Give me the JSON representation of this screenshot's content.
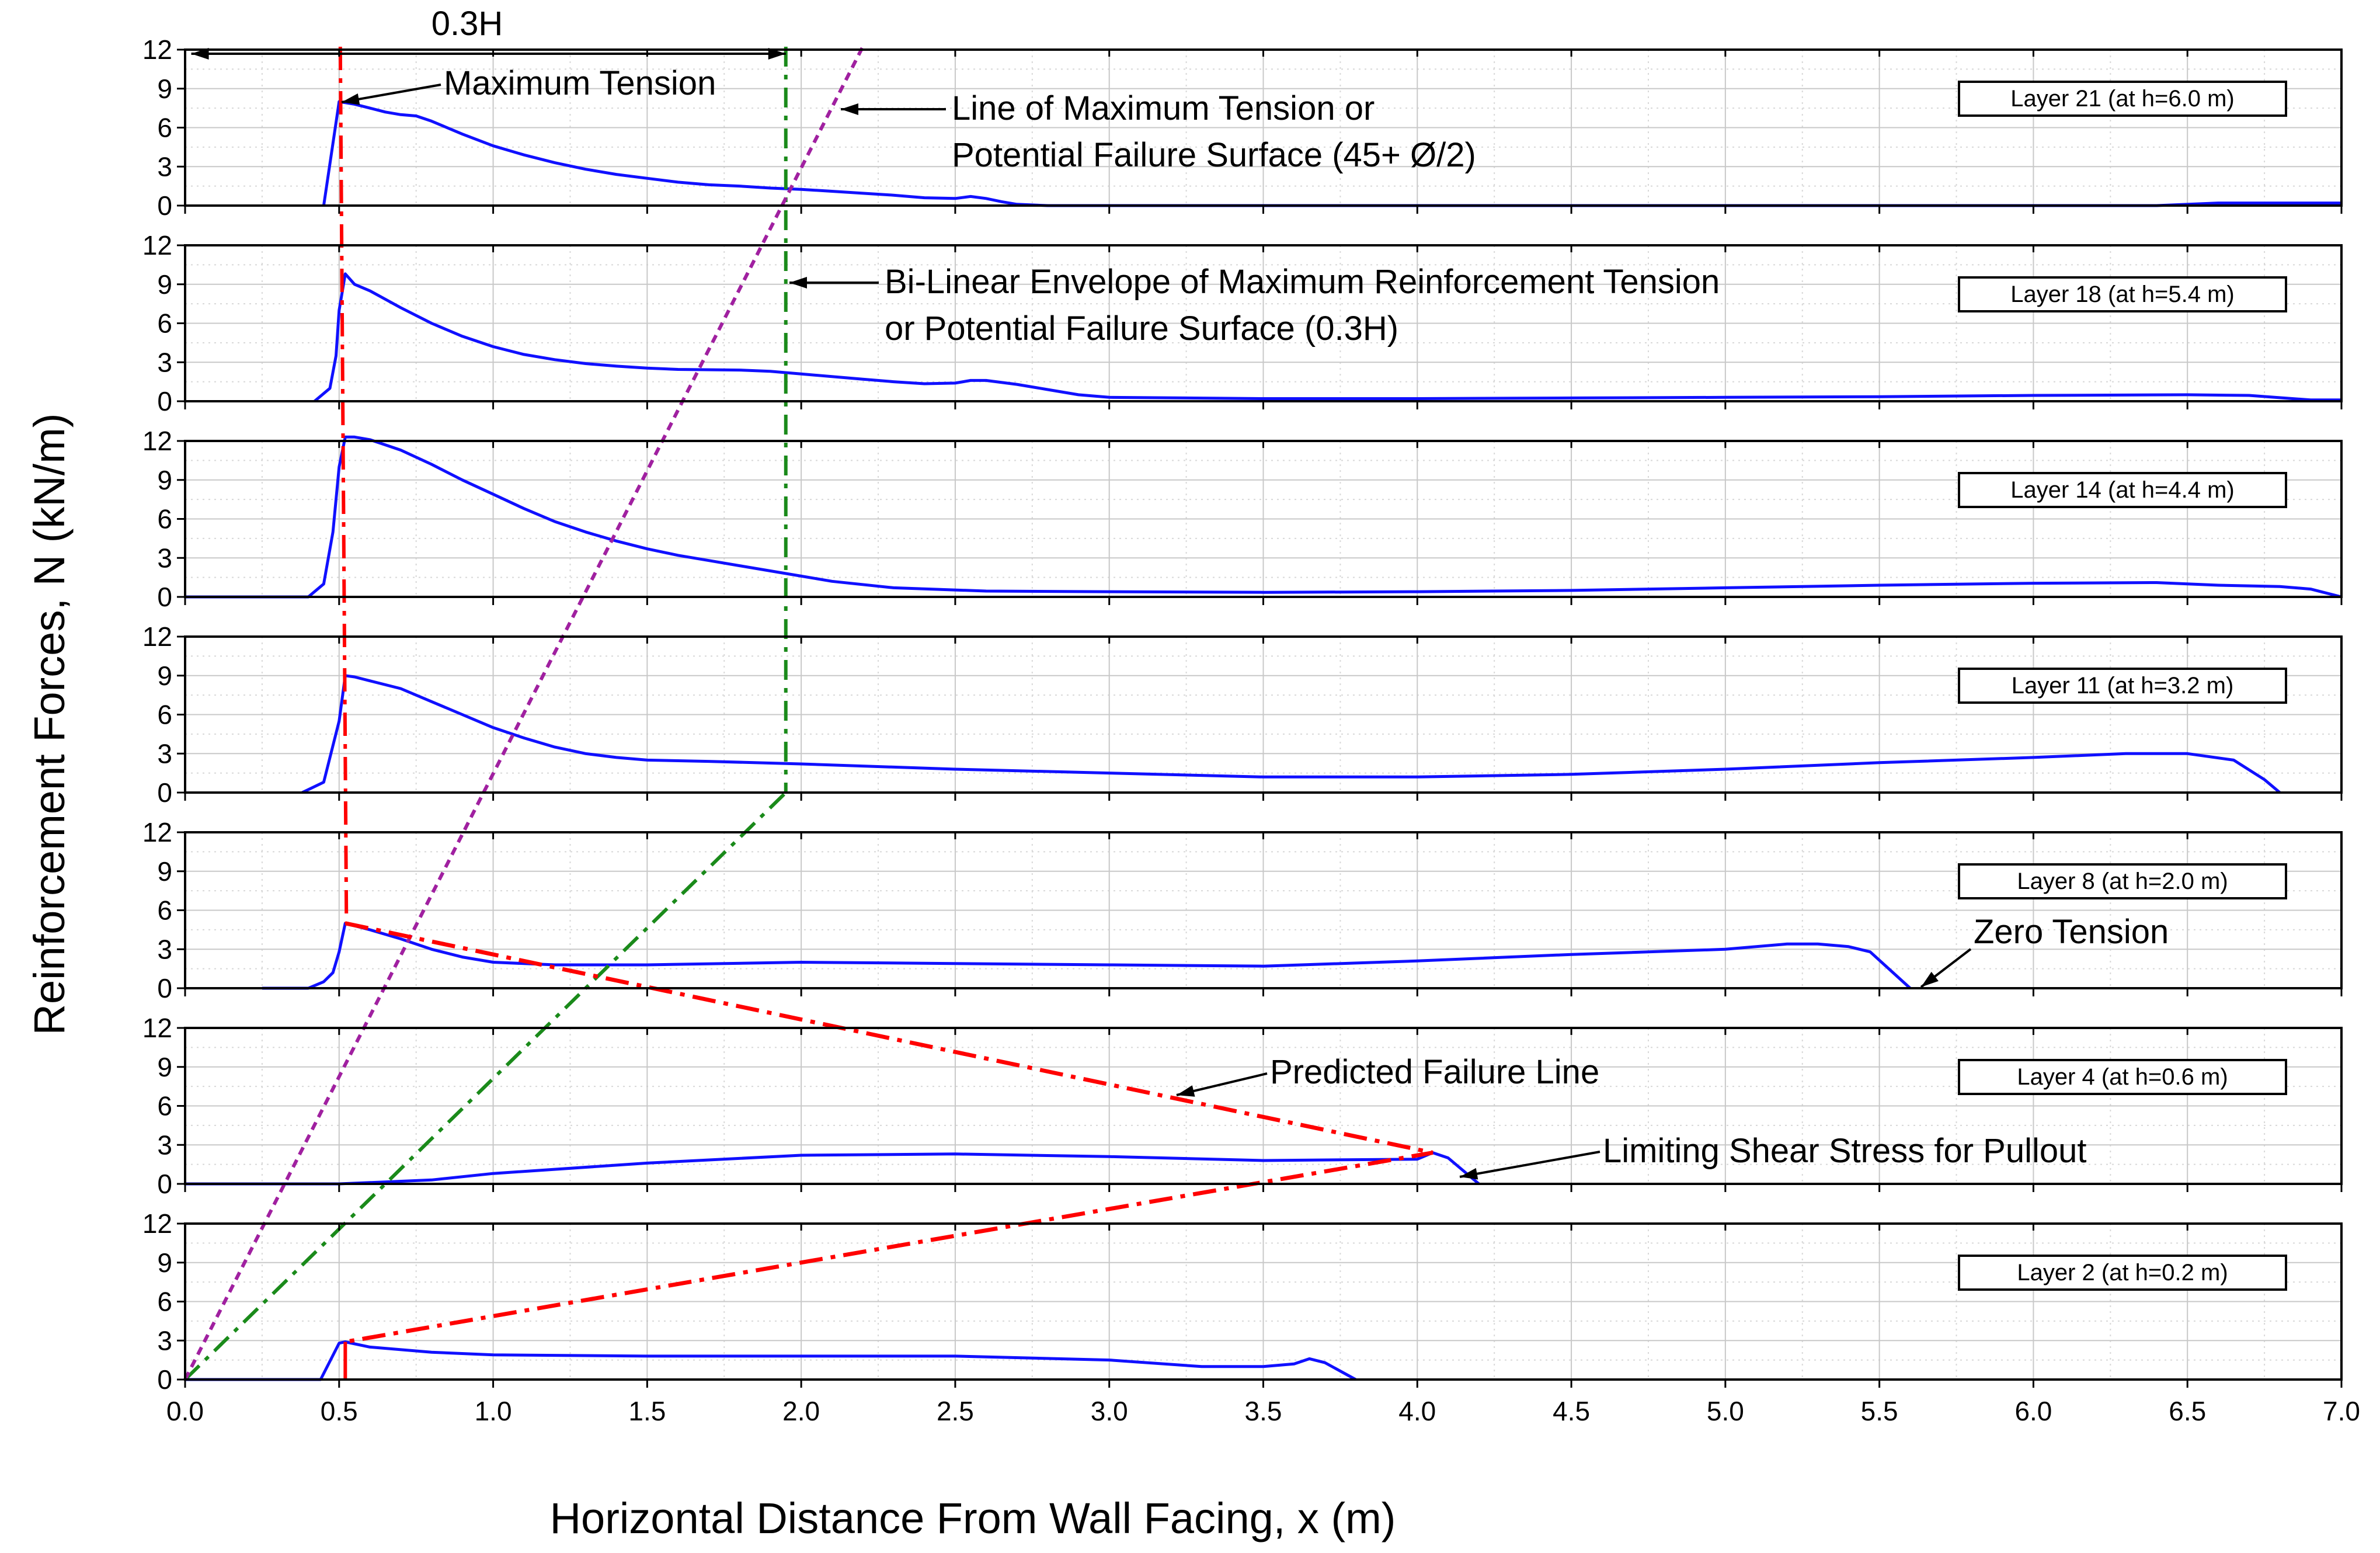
{
  "chart_data": {
    "type": "line",
    "xlabel": "Horizontal Distance From Wall Facing, x (m)",
    "ylabel": "Reinforcement Forces, N (kN/m)",
    "xlim": [
      0,
      7
    ],
    "ylim": [
      0,
      12
    ],
    "x_ticks": [
      "0.0",
      "0.5",
      "1.0",
      "1.5",
      "2.0",
      "2.5",
      "3.0",
      "3.5",
      "4.0",
      "4.5",
      "5.0",
      "5.5",
      "6.0",
      "6.5",
      "7.0"
    ],
    "y_ticks": [
      "0",
      "3",
      "6",
      "9",
      "12"
    ],
    "grid": true,
    "panels": [
      {
        "label": "Layer 21 (at h=6.0 m)",
        "points": [
          [
            0.45,
            0
          ],
          [
            0.5,
            8.0
          ],
          [
            0.55,
            7.8
          ],
          [
            0.6,
            7.5
          ],
          [
            0.65,
            7.2
          ],
          [
            0.7,
            7.0
          ],
          [
            0.75,
            6.9
          ],
          [
            0.8,
            6.5
          ],
          [
            0.9,
            5.5
          ],
          [
            1.0,
            4.6
          ],
          [
            1.1,
            3.9
          ],
          [
            1.2,
            3.3
          ],
          [
            1.3,
            2.8
          ],
          [
            1.4,
            2.4
          ],
          [
            1.5,
            2.1
          ],
          [
            1.6,
            1.8
          ],
          [
            1.7,
            1.6
          ],
          [
            1.8,
            1.5
          ],
          [
            1.9,
            1.35
          ],
          [
            2.0,
            1.25
          ],
          [
            2.1,
            1.1
          ],
          [
            2.2,
            0.95
          ],
          [
            2.3,
            0.8
          ],
          [
            2.4,
            0.6
          ],
          [
            2.5,
            0.55
          ],
          [
            2.55,
            0.7
          ],
          [
            2.6,
            0.55
          ],
          [
            2.65,
            0.3
          ],
          [
            2.7,
            0.1
          ],
          [
            2.8,
            0
          ],
          [
            6.0,
            0
          ],
          [
            6.4,
            0
          ],
          [
            6.6,
            0.2
          ],
          [
            7.0,
            0.2
          ]
        ]
      },
      {
        "label": "Layer 18 (at h=5.4 m)",
        "points": [
          [
            0.42,
            0
          ],
          [
            0.47,
            1.0
          ],
          [
            0.49,
            3.5
          ],
          [
            0.5,
            7.0
          ],
          [
            0.52,
            9.8
          ],
          [
            0.55,
            9.0
          ],
          [
            0.6,
            8.5
          ],
          [
            0.7,
            7.2
          ],
          [
            0.8,
            6.0
          ],
          [
            0.9,
            5.0
          ],
          [
            1.0,
            4.2
          ],
          [
            1.1,
            3.6
          ],
          [
            1.2,
            3.2
          ],
          [
            1.3,
            2.9
          ],
          [
            1.4,
            2.7
          ],
          [
            1.5,
            2.55
          ],
          [
            1.6,
            2.45
          ],
          [
            1.8,
            2.4
          ],
          [
            1.9,
            2.3
          ],
          [
            2.0,
            2.1
          ],
          [
            2.1,
            1.9
          ],
          [
            2.2,
            1.7
          ],
          [
            2.3,
            1.5
          ],
          [
            2.4,
            1.35
          ],
          [
            2.5,
            1.4
          ],
          [
            2.55,
            1.6
          ],
          [
            2.6,
            1.6
          ],
          [
            2.7,
            1.3
          ],
          [
            2.8,
            0.9
          ],
          [
            2.9,
            0.5
          ],
          [
            3.0,
            0.3
          ],
          [
            3.5,
            0.2
          ],
          [
            4.0,
            0.2
          ],
          [
            4.5,
            0.25
          ],
          [
            5.0,
            0.3
          ],
          [
            5.5,
            0.35
          ],
          [
            6.0,
            0.45
          ],
          [
            6.5,
            0.5
          ],
          [
            6.7,
            0.45
          ],
          [
            6.9,
            0.1
          ],
          [
            7.0,
            0.1
          ]
        ]
      },
      {
        "label": "Layer 14 (at h=4.4 m)",
        "points": [
          [
            0.0,
            0
          ],
          [
            0.4,
            0
          ],
          [
            0.45,
            1.0
          ],
          [
            0.48,
            5.0
          ],
          [
            0.5,
            10.0
          ],
          [
            0.52,
            12.3
          ],
          [
            0.55,
            12.3
          ],
          [
            0.6,
            12.1
          ],
          [
            0.7,
            11.3
          ],
          [
            0.8,
            10.2
          ],
          [
            0.9,
            9.0
          ],
          [
            1.0,
            7.9
          ],
          [
            1.1,
            6.8
          ],
          [
            1.2,
            5.8
          ],
          [
            1.3,
            5.0
          ],
          [
            1.4,
            4.3
          ],
          [
            1.5,
            3.7
          ],
          [
            1.6,
            3.2
          ],
          [
            1.7,
            2.8
          ],
          [
            1.8,
            2.4
          ],
          [
            1.9,
            2.0
          ],
          [
            2.0,
            1.6
          ],
          [
            2.1,
            1.2
          ],
          [
            2.3,
            0.7
          ],
          [
            2.6,
            0.45
          ],
          [
            3.0,
            0.4
          ],
          [
            3.5,
            0.35
          ],
          [
            4.0,
            0.4
          ],
          [
            4.5,
            0.5
          ],
          [
            5.0,
            0.7
          ],
          [
            5.5,
            0.9
          ],
          [
            6.0,
            1.05
          ],
          [
            6.4,
            1.1
          ],
          [
            6.6,
            0.9
          ],
          [
            6.8,
            0.8
          ],
          [
            6.9,
            0.6
          ],
          [
            7.0,
            0
          ]
        ]
      },
      {
        "label": "Layer 11 (at h=3.2 m)",
        "points": [
          [
            0.38,
            0
          ],
          [
            0.45,
            0.8
          ],
          [
            0.5,
            5.5
          ],
          [
            0.52,
            9.0
          ],
          [
            0.55,
            8.9
          ],
          [
            0.6,
            8.6
          ],
          [
            0.7,
            8.0
          ],
          [
            0.8,
            7.0
          ],
          [
            0.9,
            6.0
          ],
          [
            1.0,
            5.0
          ],
          [
            1.1,
            4.2
          ],
          [
            1.2,
            3.5
          ],
          [
            1.3,
            3.0
          ],
          [
            1.4,
            2.7
          ],
          [
            1.5,
            2.5
          ],
          [
            1.7,
            2.4
          ],
          [
            2.0,
            2.2
          ],
          [
            2.5,
            1.8
          ],
          [
            3.0,
            1.5
          ],
          [
            3.5,
            1.2
          ],
          [
            4.0,
            1.2
          ],
          [
            4.5,
            1.4
          ],
          [
            5.0,
            1.8
          ],
          [
            5.5,
            2.3
          ],
          [
            6.0,
            2.7
          ],
          [
            6.3,
            3.0
          ],
          [
            6.5,
            3.0
          ],
          [
            6.65,
            2.5
          ],
          [
            6.75,
            1.0
          ],
          [
            6.8,
            0
          ]
        ]
      },
      {
        "label": "Layer 8 (at h=2.0 m)",
        "points": [
          [
            0.25,
            0
          ],
          [
            0.4,
            0
          ],
          [
            0.45,
            0.5
          ],
          [
            0.48,
            1.2
          ],
          [
            0.5,
            2.8
          ],
          [
            0.52,
            5.0
          ],
          [
            0.6,
            4.5
          ],
          [
            0.7,
            3.8
          ],
          [
            0.8,
            3.0
          ],
          [
            0.9,
            2.4
          ],
          [
            1.0,
            2.0
          ],
          [
            1.2,
            1.8
          ],
          [
            1.5,
            1.8
          ],
          [
            2.0,
            2.0
          ],
          [
            2.5,
            1.9
          ],
          [
            3.0,
            1.8
          ],
          [
            3.5,
            1.7
          ],
          [
            4.0,
            2.1
          ],
          [
            4.5,
            2.6
          ],
          [
            5.0,
            3.0
          ],
          [
            5.2,
            3.4
          ],
          [
            5.3,
            3.4
          ],
          [
            5.4,
            3.2
          ],
          [
            5.47,
            2.8
          ],
          [
            5.6,
            0
          ]
        ]
      },
      {
        "label": "Layer 4 (at h=0.6 m)",
        "points": [
          [
            0.0,
            0
          ],
          [
            0.5,
            0
          ],
          [
            0.8,
            0.3
          ],
          [
            1.0,
            0.8
          ],
          [
            1.5,
            1.6
          ],
          [
            2.0,
            2.2
          ],
          [
            2.5,
            2.3
          ],
          [
            3.0,
            2.1
          ],
          [
            3.5,
            1.8
          ],
          [
            4.0,
            1.9
          ],
          [
            4.05,
            2.4
          ],
          [
            4.1,
            2.0
          ],
          [
            4.2,
            0
          ]
        ]
      },
      {
        "label": "Layer 2 (at h=0.2 m)",
        "points": [
          [
            0.0,
            0
          ],
          [
            0.44,
            0
          ],
          [
            0.5,
            2.8
          ],
          [
            0.52,
            2.9
          ],
          [
            0.6,
            2.5
          ],
          [
            0.8,
            2.1
          ],
          [
            1.0,
            1.9
          ],
          [
            1.5,
            1.8
          ],
          [
            2.0,
            1.8
          ],
          [
            2.5,
            1.8
          ],
          [
            3.0,
            1.5
          ],
          [
            3.3,
            1.0
          ],
          [
            3.5,
            1.0
          ],
          [
            3.6,
            1.2
          ],
          [
            3.65,
            1.6
          ],
          [
            3.7,
            1.3
          ],
          [
            3.8,
            0
          ]
        ]
      }
    ],
    "reference_lines": {
      "max_tension_x": 0.5,
      "bilinear_x": 1.95,
      "potential_failure_slope_deg": "45+Ø/2",
      "predicted_failure_line": [
        [
          0.52,
          5.0,
          "Layer 8"
        ],
        [
          4.05,
          2.4,
          "Layer 4"
        ],
        [
          0.52,
          2.9,
          "Layer 2"
        ]
      ]
    },
    "annotations": {
      "dimension": "0.3H",
      "max_tension": "Maximum Tension",
      "line_max_tension_1": "Line of Maximum Tension or",
      "line_max_tension_2": "Potential Failure Surface (45+ Ø/2)",
      "bilinear_1": "Bi-Linear Envelope of Maximum Reinforcement Tension",
      "bilinear_2": "or Potential Failure Surface (0.3H)",
      "zero_tension": "Zero Tension",
      "predicted_failure": "Predicted Failure Line",
      "limiting_shear": "Limiting Shear Stress for Pullout"
    },
    "colors": {
      "series": "#1010ff",
      "max_tension_line": "#ff0000",
      "failure_surface_line": "#a020a0",
      "bilinear_line": "#1a8a1a"
    }
  }
}
